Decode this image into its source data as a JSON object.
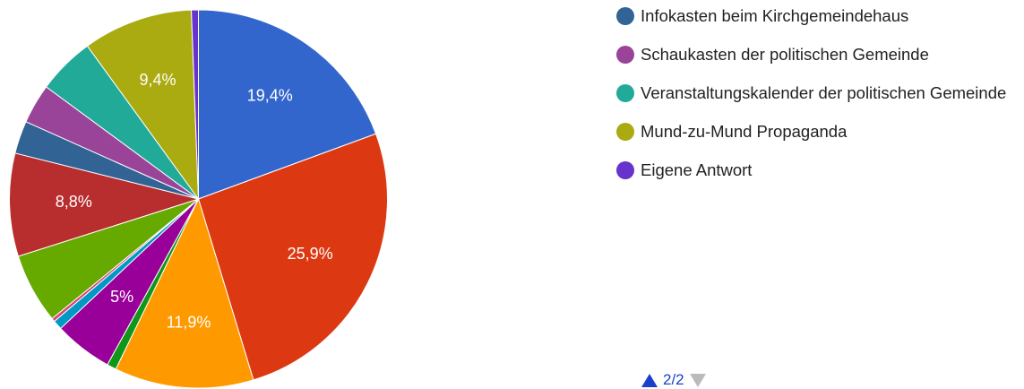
{
  "chart_data": {
    "type": "pie",
    "categories": [
      null,
      null,
      null,
      null,
      null,
      null,
      null,
      null,
      null,
      "Infokasten beim Kirchgemeindehaus",
      "Schaukasten der politischen Gemeinde",
      "Veranstaltungskalender der politischen Gemeinde",
      "Mund-zu-Mund Propaganda",
      "Eigene Antwort"
    ],
    "values": [
      19.4,
      25.9,
      11.9,
      0.8,
      5,
      0.8,
      0.3,
      6,
      8.8,
      2.8,
      3.4,
      4.9,
      9.4,
      0.6
    ],
    "value_labels": [
      "19,4%",
      "25,9%",
      "11,9%",
      null,
      "5%",
      null,
      null,
      null,
      "8,8%",
      null,
      null,
      null,
      "9,4%",
      null
    ],
    "colors": [
      "#3366cc",
      "#dc3912",
      "#ff9900",
      "#109618",
      "#990099",
      "#0099c6",
      "#dd4477",
      "#66aa00",
      "#b82e2e",
      "#316395",
      "#994499",
      "#22aa99",
      "#aaaa11",
      "#6633cc"
    ],
    "pager": "2/2"
  }
}
